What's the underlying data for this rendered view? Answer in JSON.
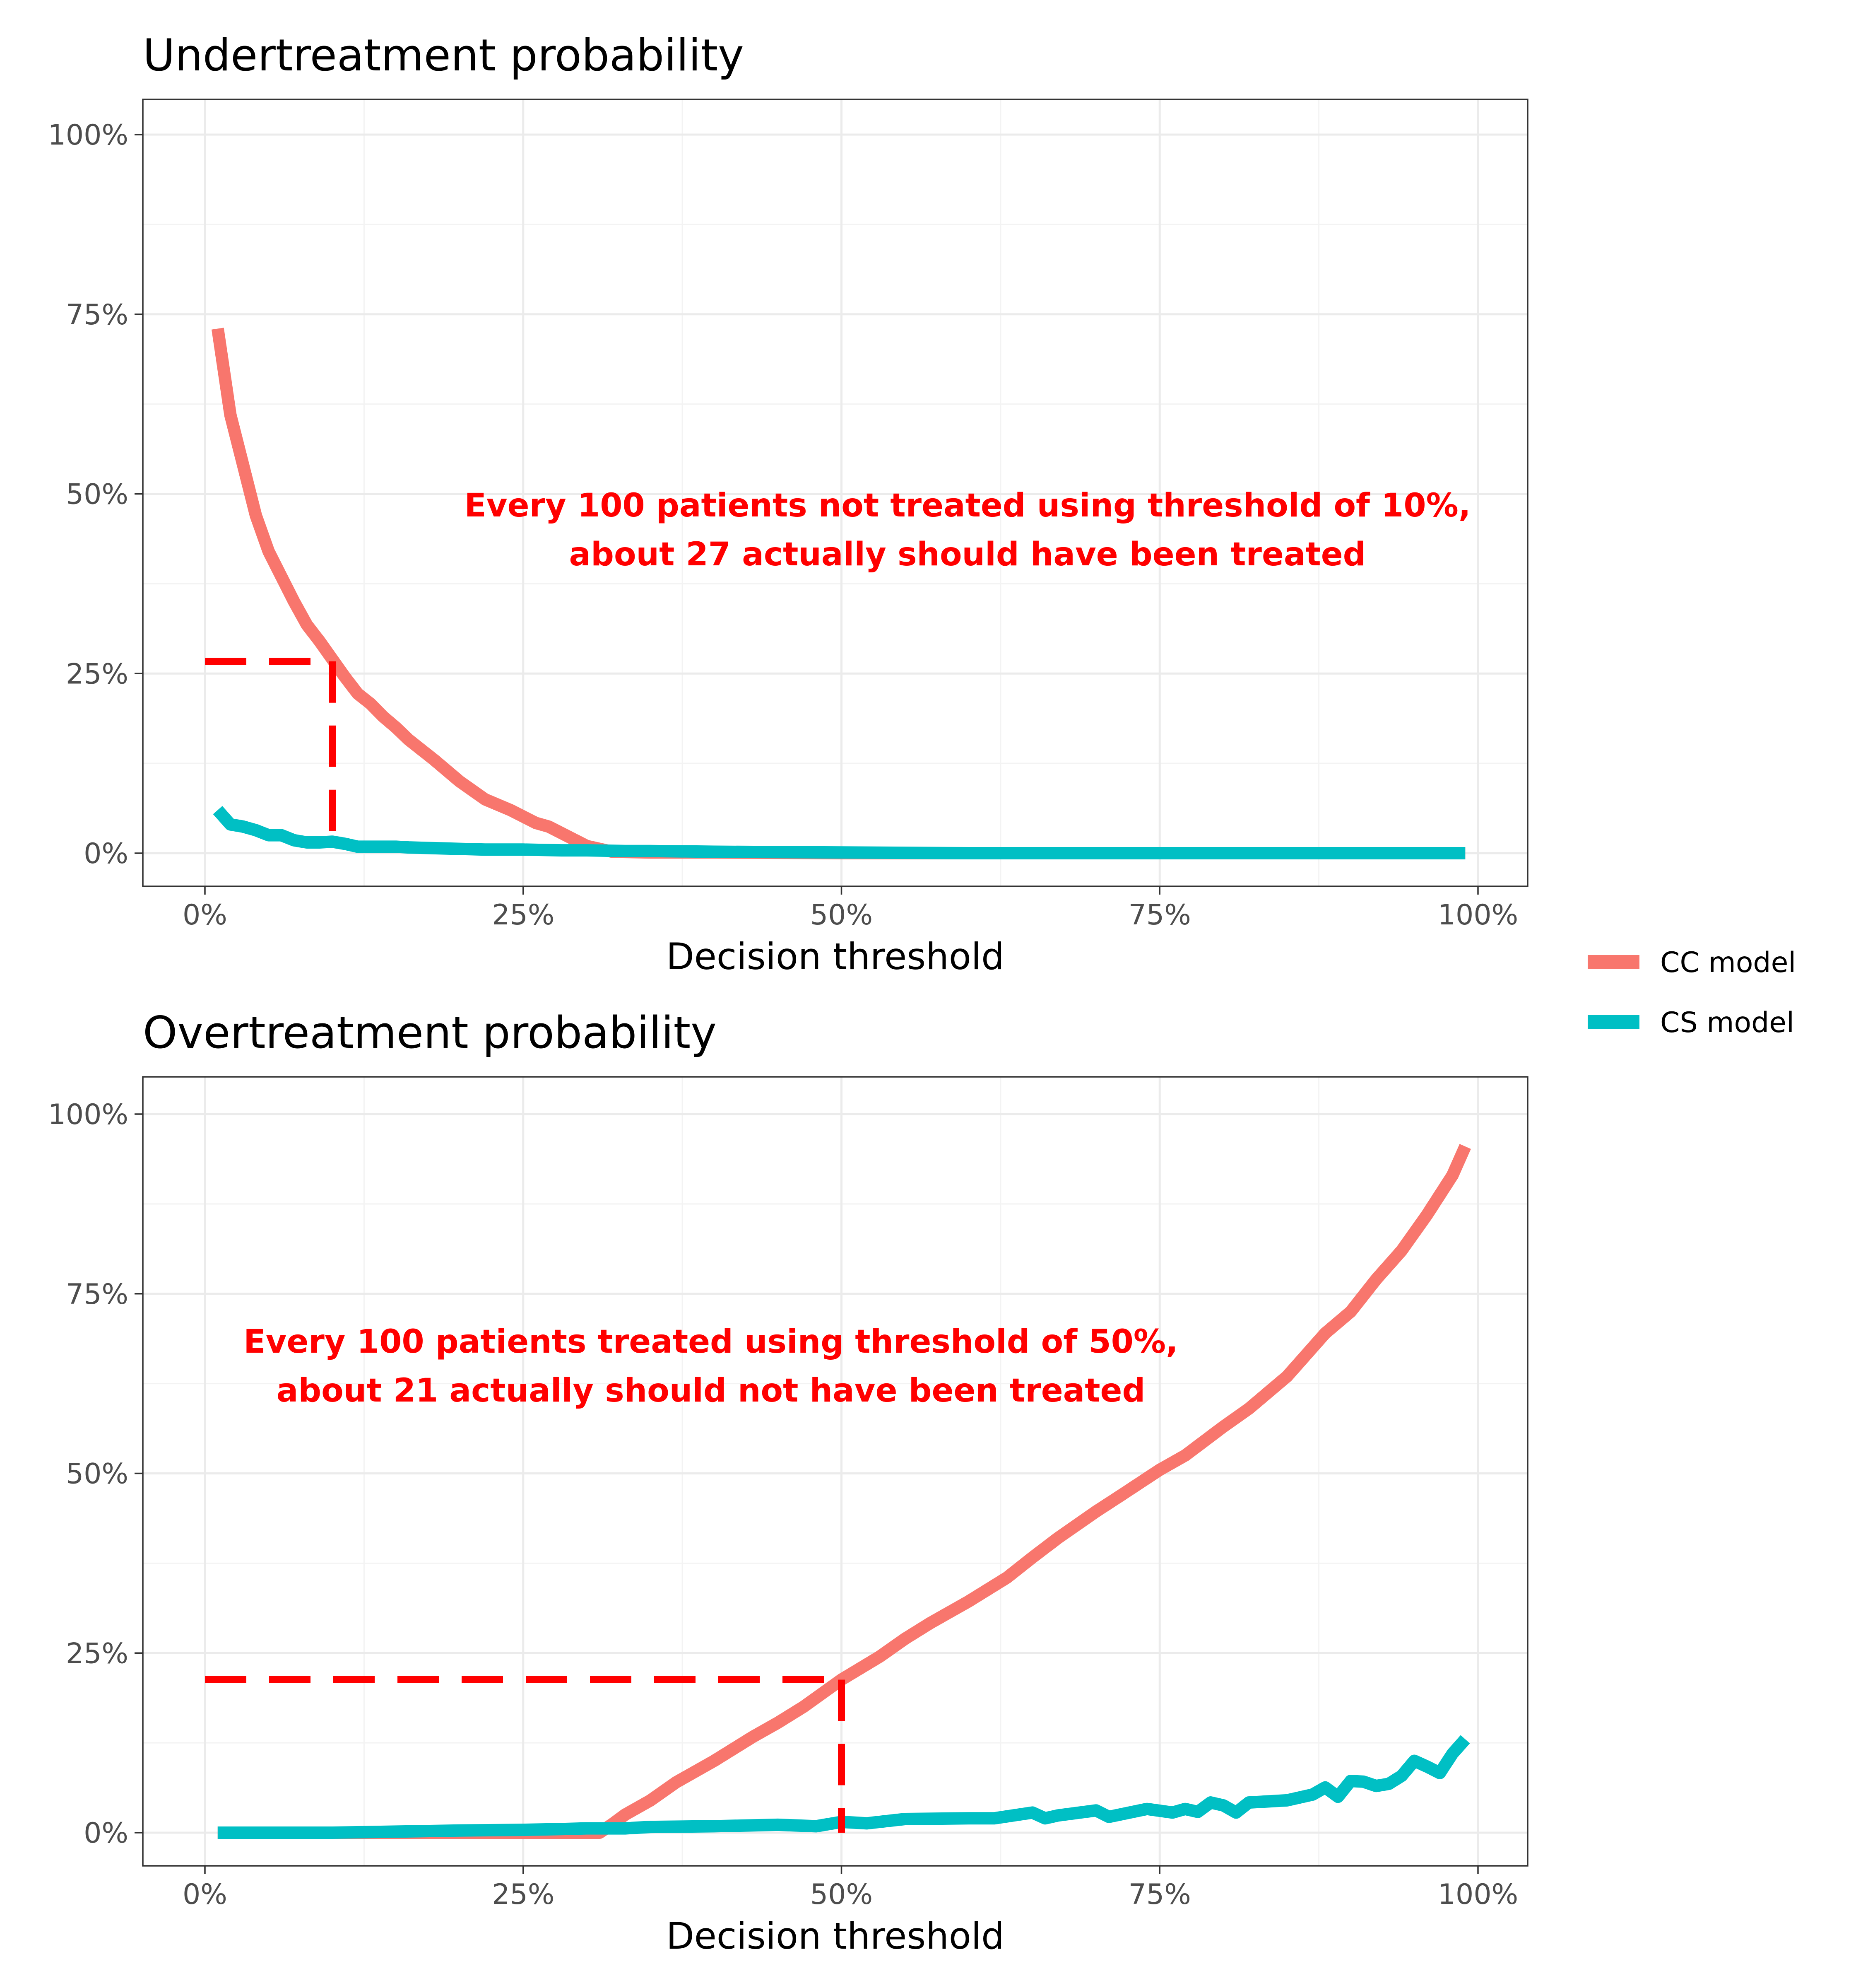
{
  "colors": {
    "cc": "#F8766D",
    "cs": "#00BFC4",
    "annotation": "#FF0000"
  },
  "legend": {
    "position": "right",
    "items": [
      {
        "label": "CC model",
        "color": "#F8766D"
      },
      {
        "label": "CS model",
        "color": "#00BFC4"
      }
    ]
  },
  "chart_data": [
    {
      "type": "line",
      "title": "Undertreatment probability",
      "xlabel": "Decision threshold",
      "ylabel": "",
      "xlim": [
        0,
        1
      ],
      "ylim": [
        0,
        1
      ],
      "x_ticks": [
        "0%",
        "25%",
        "50%",
        "75%",
        "100%"
      ],
      "y_ticks": [
        "0%",
        "25%",
        "50%",
        "75%",
        "100%"
      ],
      "grid": true,
      "annotation": {
        "lines": [
          "Every 100 patients not treated using threshold of 10%,",
          "about 27 actually should have been treated"
        ],
        "anchor_x": 0.3,
        "anchor_y": 0.44
      },
      "reference": {
        "x": 0.1,
        "y": 0.267
      },
      "series": [
        {
          "name": "CC model",
          "x": [
            0.01,
            0.02,
            0.03,
            0.04,
            0.05,
            0.06,
            0.07,
            0.08,
            0.09,
            0.1,
            0.11,
            0.12,
            0.13,
            0.14,
            0.15,
            0.16,
            0.18,
            0.2,
            0.22,
            0.24,
            0.26,
            0.27,
            0.28,
            0.3,
            0.32,
            0.35,
            0.4,
            0.5,
            0.6,
            0.7,
            0.8,
            0.9,
            0.99
          ],
          "y": [
            0.73,
            0.61,
            0.54,
            0.47,
            0.42,
            0.385,
            0.35,
            0.318,
            0.295,
            0.27,
            0.245,
            0.222,
            0.208,
            0.19,
            0.175,
            0.158,
            0.13,
            0.1,
            0.075,
            0.06,
            0.042,
            0.037,
            0.028,
            0.01,
            0.002,
            0.001,
            0.001,
            0.0,
            0.0,
            0.0,
            0.0,
            0.0,
            0.0
          ]
        },
        {
          "name": "CS model",
          "x": [
            0.01,
            0.02,
            0.03,
            0.04,
            0.05,
            0.06,
            0.07,
            0.08,
            0.09,
            0.1,
            0.11,
            0.12,
            0.13,
            0.14,
            0.15,
            0.16,
            0.18,
            0.2,
            0.22,
            0.25,
            0.28,
            0.3,
            0.33,
            0.35,
            0.4,
            0.5,
            0.6,
            0.7,
            0.8,
            0.9,
            0.99
          ],
          "y": [
            0.06,
            0.04,
            0.037,
            0.032,
            0.025,
            0.025,
            0.018,
            0.015,
            0.015,
            0.016,
            0.013,
            0.009,
            0.009,
            0.009,
            0.009,
            0.008,
            0.007,
            0.006,
            0.005,
            0.005,
            0.004,
            0.004,
            0.003,
            0.003,
            0.002,
            0.001,
            0.0,
            0.0,
            0.0,
            0.0,
            0.0
          ]
        }
      ]
    },
    {
      "type": "line",
      "title": "Overtreatment probability",
      "xlabel": "Decision threshold",
      "ylabel": "",
      "xlim": [
        0,
        1
      ],
      "ylim": [
        0,
        1
      ],
      "x_ticks": [
        "0%",
        "25%",
        "50%",
        "75%",
        "100%"
      ],
      "y_ticks": [
        "0%",
        "25%",
        "50%",
        "75%",
        "100%"
      ],
      "grid": true,
      "annotation": {
        "lines": [
          "Every 100 patients treated using threshold of 50%,",
          "about 21 actually should not have been treated"
        ],
        "anchor_x": 0.4,
        "anchor_y": 0.66
      },
      "reference": {
        "x": 0.5,
        "y": 0.213
      },
      "series": [
        {
          "name": "CC model",
          "x": [
            0.01,
            0.1,
            0.2,
            0.28,
            0.31,
            0.32,
            0.33,
            0.35,
            0.37,
            0.4,
            0.43,
            0.45,
            0.47,
            0.5,
            0.53,
            0.55,
            0.57,
            0.6,
            0.63,
            0.65,
            0.67,
            0.7,
            0.72,
            0.75,
            0.77,
            0.8,
            0.82,
            0.85,
            0.88,
            0.9,
            0.92,
            0.94,
            0.96,
            0.98,
            0.99
          ],
          "y": [
            0.0,
            0.0,
            0.0,
            0.0,
            0.0,
            0.012,
            0.025,
            0.045,
            0.07,
            0.1,
            0.133,
            0.153,
            0.175,
            0.213,
            0.245,
            0.27,
            0.292,
            0.322,
            0.355,
            0.383,
            0.41,
            0.447,
            0.47,
            0.505,
            0.525,
            0.565,
            0.59,
            0.635,
            0.695,
            0.725,
            0.77,
            0.81,
            0.86,
            0.915,
            0.955
          ]
        },
        {
          "name": "CS model",
          "x": [
            0.01,
            0.1,
            0.2,
            0.25,
            0.28,
            0.3,
            0.33,
            0.35,
            0.4,
            0.45,
            0.48,
            0.5,
            0.52,
            0.55,
            0.6,
            0.62,
            0.65,
            0.66,
            0.67,
            0.7,
            0.71,
            0.74,
            0.76,
            0.77,
            0.78,
            0.79,
            0.8,
            0.81,
            0.82,
            0.85,
            0.87,
            0.88,
            0.89,
            0.9,
            0.91,
            0.92,
            0.93,
            0.94,
            0.95,
            0.96,
            0.97,
            0.98,
            0.99
          ],
          "y": [
            0.0,
            0.0,
            0.003,
            0.004,
            0.005,
            0.006,
            0.006,
            0.008,
            0.009,
            0.011,
            0.009,
            0.015,
            0.013,
            0.019,
            0.02,
            0.02,
            0.028,
            0.02,
            0.024,
            0.031,
            0.022,
            0.033,
            0.028,
            0.033,
            0.029,
            0.042,
            0.038,
            0.028,
            0.042,
            0.045,
            0.053,
            0.063,
            0.05,
            0.072,
            0.071,
            0.065,
            0.068,
            0.079,
            0.1,
            0.092,
            0.083,
            0.11,
            0.13
          ]
        }
      ]
    }
  ]
}
